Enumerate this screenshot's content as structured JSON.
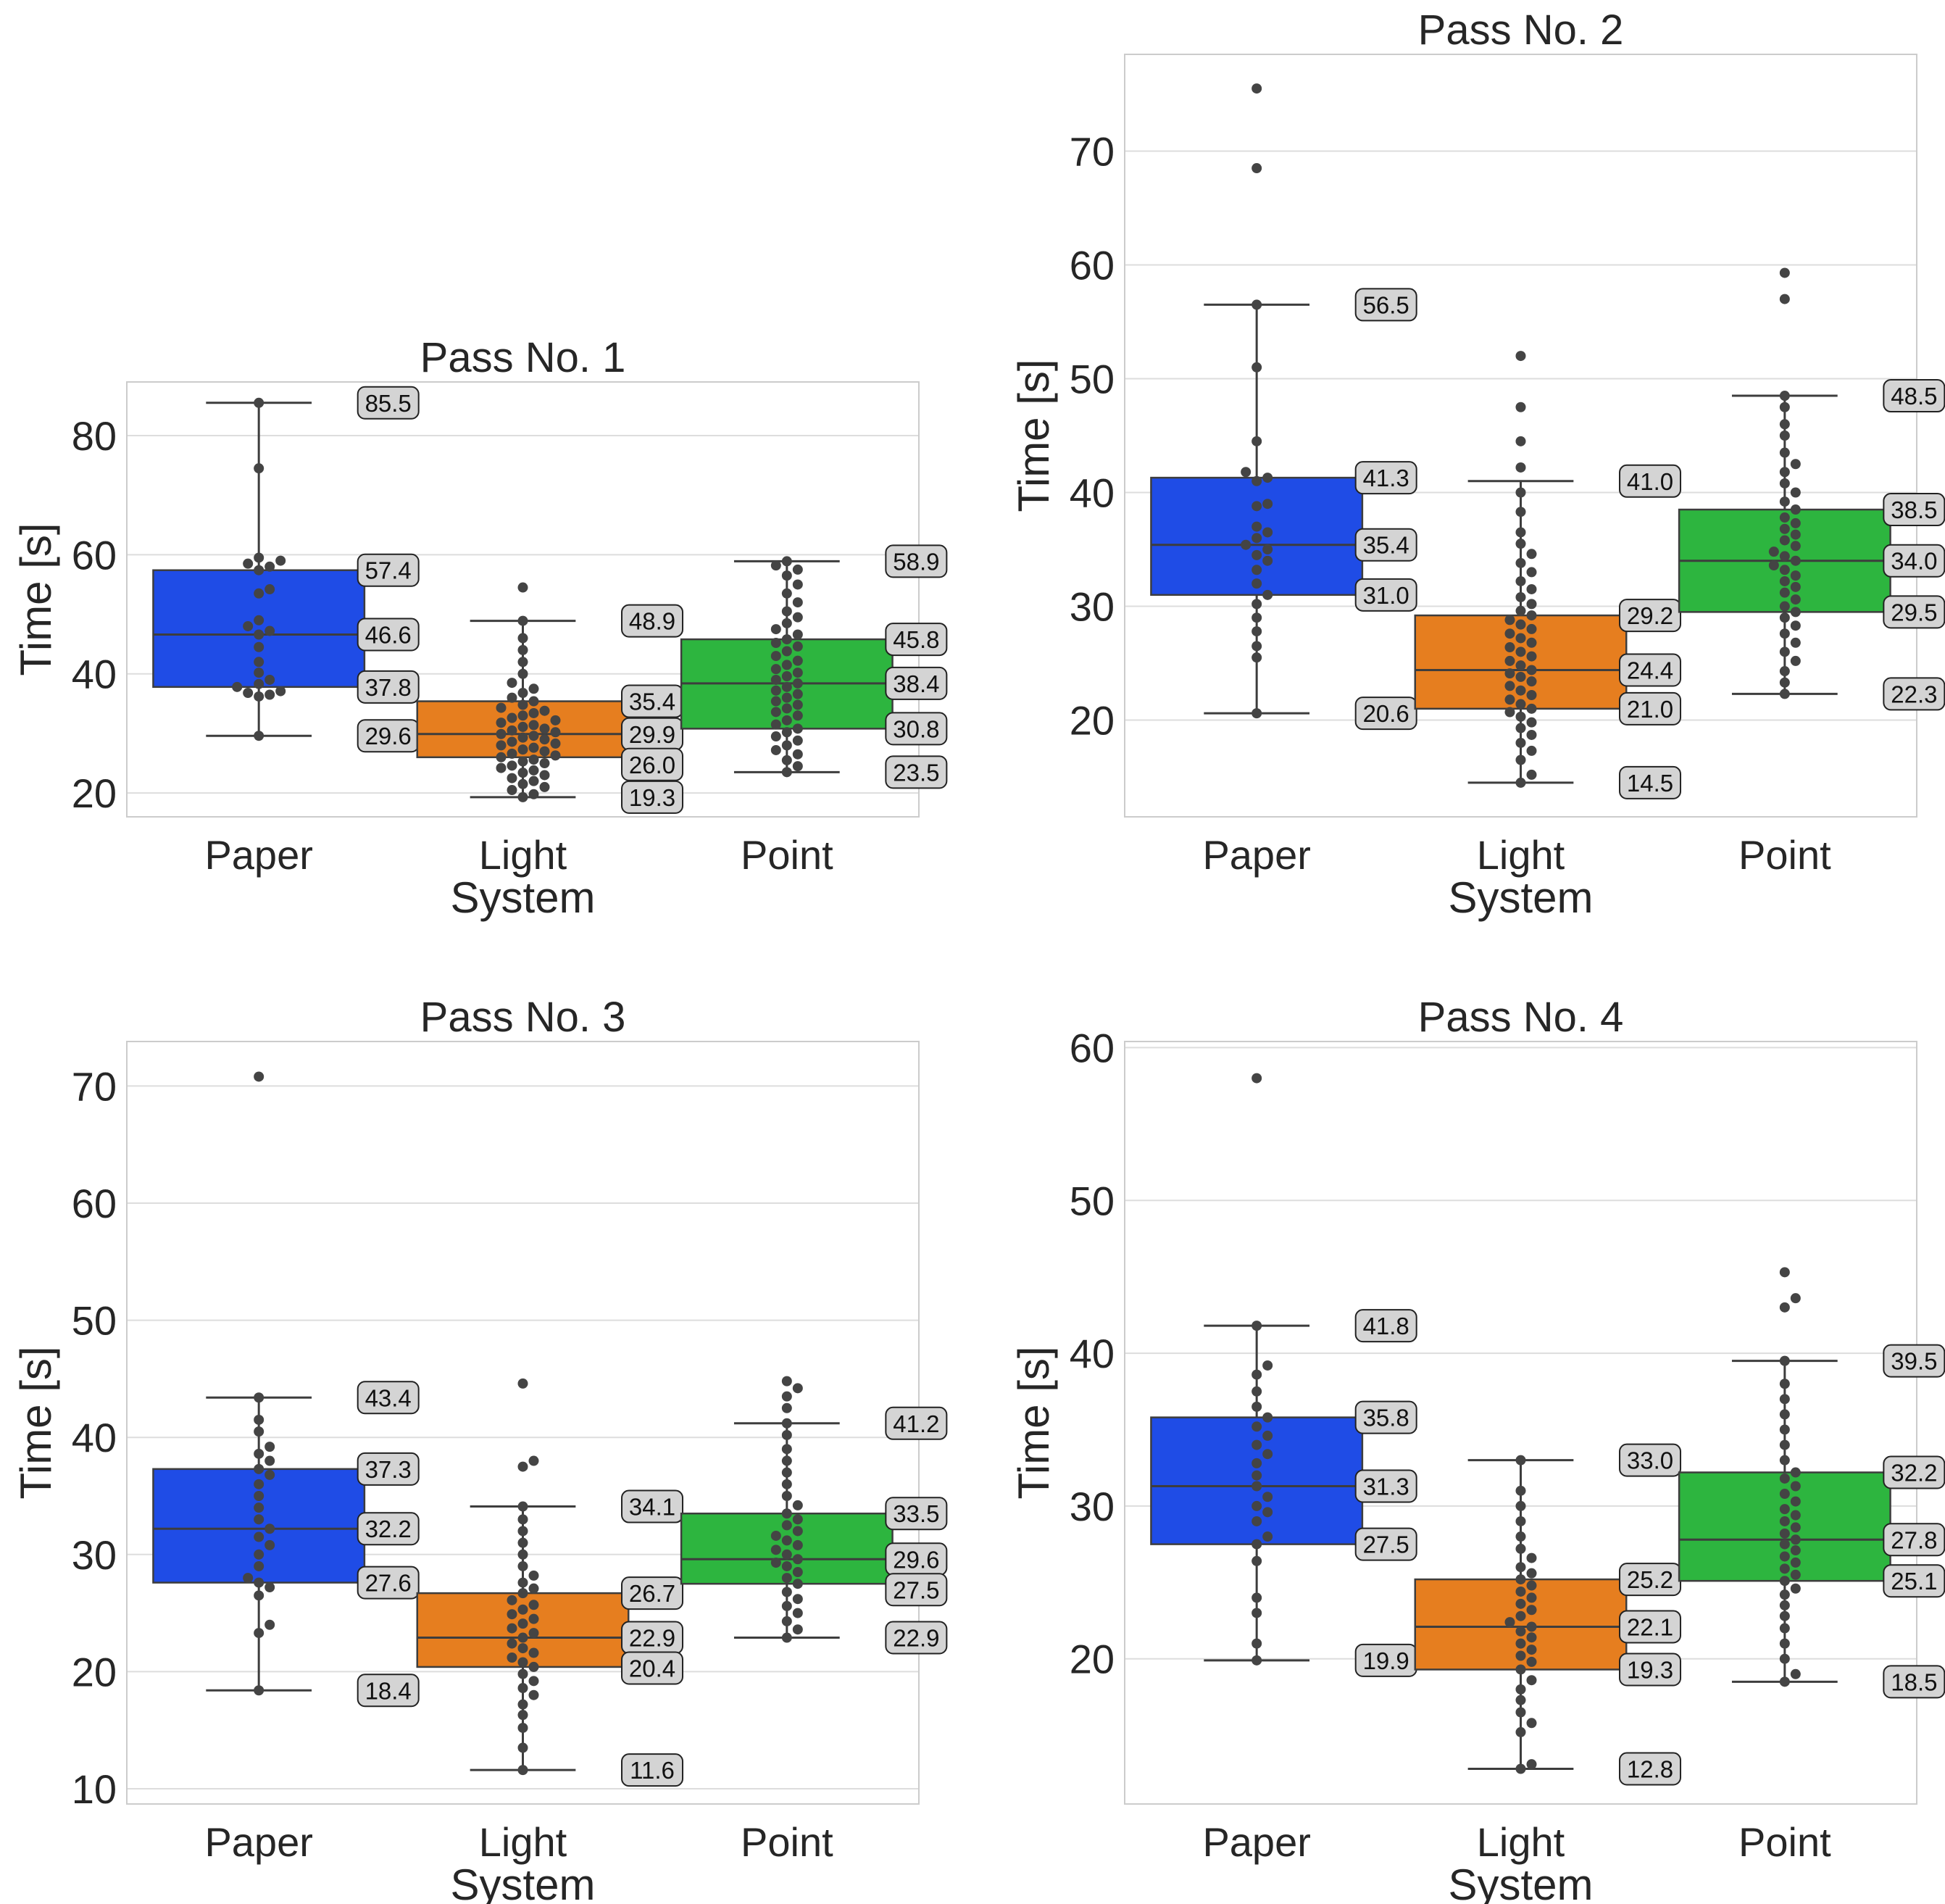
{
  "figure": {
    "x_label": "System",
    "y_label": "Time [s]",
    "colors": {
      "Paper": "#1f4ce6",
      "Light": "#e67e1f",
      "Point": "#2db53f",
      "dots": "#444444",
      "grid": "#dddddd",
      "frame": "#cccccc",
      "label_box": "#d4d4d4"
    }
  },
  "chart_data": [
    {
      "type": "box",
      "title": "Pass No. 1",
      "xlabel": "System",
      "ylabel": "Time [s]",
      "ylim": [
        16,
        89
      ],
      "yticks": [
        20,
        40,
        60,
        80
      ],
      "categories": [
        "Paper",
        "Light",
        "Point"
      ],
      "boxes": [
        {
          "category": "Paper",
          "whislo": 29.6,
          "q1": 37.8,
          "med": 46.6,
          "q3": 57.4,
          "whishi": 85.5,
          "points": [
            29.6,
            36.2,
            36.5,
            36.8,
            37.1,
            37.8,
            38.3,
            39.0,
            40.2,
            42.0,
            44.5,
            46.6,
            47.2,
            48.0,
            49.0,
            53.5,
            54.2,
            57.4,
            58.0,
            58.5,
            59.0,
            59.5,
            74.5,
            85.5
          ]
        },
        {
          "category": "Light",
          "whislo": 19.3,
          "q1": 26.0,
          "med": 29.9,
          "q3": 35.4,
          "whishi": 48.9,
          "points": [
            19.3,
            19.8,
            20.5,
            21.0,
            21.5,
            22.0,
            22.5,
            23.0,
            23.4,
            23.8,
            24.2,
            24.6,
            25.0,
            25.3,
            25.6,
            26.0,
            26.3,
            26.6,
            27.0,
            27.3,
            27.6,
            28.0,
            28.3,
            28.6,
            29.0,
            29.3,
            29.6,
            29.9,
            30.2,
            30.5,
            30.8,
            31.1,
            31.4,
            31.8,
            32.2,
            32.6,
            33.0,
            33.4,
            33.8,
            34.3,
            34.8,
            35.4,
            36.0,
            36.8,
            37.5,
            38.5,
            40.0,
            42.0,
            44.0,
            46.0,
            48.9,
            54.5
          ]
        },
        {
          "category": "Point",
          "whislo": 23.5,
          "q1": 30.8,
          "med": 38.4,
          "q3": 45.8,
          "whishi": 58.9,
          "points": [
            23.5,
            24.5,
            25.5,
            26.5,
            27.2,
            28.0,
            28.8,
            29.5,
            30.2,
            30.8,
            31.5,
            32.2,
            33.0,
            33.6,
            34.2,
            34.8,
            35.4,
            36.0,
            36.6,
            37.2,
            37.8,
            38.4,
            39.0,
            39.6,
            40.2,
            40.8,
            41.5,
            42.2,
            43.0,
            43.8,
            44.6,
            45.2,
            45.8,
            46.6,
            47.5,
            48.5,
            49.5,
            50.5,
            52.0,
            53.5,
            55.0,
            56.5,
            57.5,
            58.2,
            58.9
          ]
        }
      ]
    },
    {
      "type": "box",
      "title": "Pass No. 2",
      "xlabel": "System",
      "ylabel": "Time [s]",
      "ylim": [
        11.5,
        78.5
      ],
      "yticks": [
        20,
        30,
        40,
        50,
        60,
        70
      ],
      "categories": [
        "Paper",
        "Light",
        "Point"
      ],
      "boxes": [
        {
          "category": "Paper",
          "whislo": 20.6,
          "q1": 31.0,
          "med": 35.4,
          "q3": 41.3,
          "whishi": 56.5,
          "points": [
            20.6,
            25.5,
            26.5,
            27.8,
            29.0,
            30.2,
            31.0,
            32.0,
            33.2,
            34.0,
            34.5,
            35.0,
            35.4,
            36.0,
            36.5,
            37.0,
            38.8,
            39.0,
            41.0,
            41.3,
            41.8,
            44.5,
            51.0,
            56.5,
            68.5,
            75.5
          ]
        },
        {
          "category": "Light",
          "whislo": 14.5,
          "q1": 21.0,
          "med": 24.4,
          "q3": 29.2,
          "whishi": 41.0,
          "points": [
            14.5,
            15.2,
            16.5,
            17.3,
            18.0,
            18.7,
            19.3,
            19.8,
            20.3,
            20.7,
            21.0,
            21.4,
            21.8,
            22.2,
            22.6,
            23.0,
            23.4,
            23.8,
            24.1,
            24.4,
            24.8,
            25.2,
            25.6,
            26.0,
            26.4,
            26.8,
            27.2,
            27.6,
            28.0,
            28.4,
            28.8,
            29.2,
            29.6,
            30.2,
            30.8,
            31.5,
            32.2,
            33.0,
            33.8,
            34.6,
            35.5,
            36.5,
            38.3,
            40.0,
            42.2,
            44.5,
            47.5,
            52.0
          ]
        },
        {
          "category": "Point",
          "whislo": 22.3,
          "q1": 29.5,
          "med": 34.0,
          "q3": 38.5,
          "whishi": 48.5,
          "points": [
            22.3,
            23.3,
            24.3,
            25.2,
            26.0,
            26.8,
            27.6,
            28.3,
            29.0,
            29.5,
            30.0,
            30.6,
            31.2,
            31.7,
            32.2,
            32.7,
            33.2,
            33.6,
            34.0,
            34.4,
            34.8,
            35.3,
            35.8,
            36.3,
            36.8,
            37.3,
            37.8,
            38.5,
            39.2,
            40.0,
            40.8,
            41.8,
            42.5,
            43.5,
            45.0,
            46.0,
            47.5,
            48.5,
            57.0,
            59.3
          ]
        }
      ]
    },
    {
      "type": "box",
      "title": "Pass No. 3",
      "xlabel": "System",
      "ylabel": "Time [s]",
      "ylim": [
        8.7,
        73.8
      ],
      "yticks": [
        10,
        20,
        30,
        40,
        50,
        60,
        70
      ],
      "categories": [
        "Paper",
        "Light",
        "Point"
      ],
      "boxes": [
        {
          "category": "Paper",
          "whislo": 18.4,
          "q1": 27.6,
          "med": 32.2,
          "q3": 37.3,
          "whishi": 43.4,
          "points": [
            18.4,
            23.3,
            24.0,
            26.5,
            27.2,
            27.6,
            28.0,
            29.0,
            30.0,
            30.8,
            31.5,
            32.2,
            33.0,
            34.0,
            35.0,
            36.0,
            36.8,
            37.3,
            38.0,
            38.6,
            39.2,
            40.5,
            41.5,
            43.4,
            70.8
          ]
        },
        {
          "category": "Light",
          "whislo": 11.6,
          "q1": 20.4,
          "med": 22.9,
          "q3": 26.7,
          "whishi": 34.1,
          "points": [
            11.6,
            13.5,
            15.2,
            16.3,
            17.2,
            18.0,
            18.6,
            19.2,
            19.8,
            20.4,
            20.8,
            21.2,
            21.6,
            22.0,
            22.4,
            22.9,
            23.3,
            23.7,
            24.1,
            24.5,
            24.9,
            25.3,
            25.7,
            26.1,
            26.7,
            27.1,
            27.6,
            28.2,
            29.0,
            30.0,
            31.0,
            32.0,
            33.0,
            34.1,
            37.5,
            38.0,
            44.6
          ]
        },
        {
          "category": "Point",
          "whislo": 22.9,
          "q1": 27.5,
          "med": 29.6,
          "q3": 33.5,
          "whishi": 41.2,
          "points": [
            22.9,
            23.6,
            24.3,
            25.0,
            25.6,
            26.2,
            26.8,
            27.5,
            28.0,
            28.5,
            29.0,
            29.3,
            29.6,
            30.0,
            30.4,
            30.8,
            31.2,
            31.6,
            32.0,
            32.5,
            33.0,
            33.5,
            34.2,
            35.0,
            36.0,
            37.0,
            38.0,
            39.0,
            40.2,
            41.2,
            42.5,
            43.5,
            44.2,
            44.8
          ]
        }
      ]
    },
    {
      "type": "box",
      "title": "Pass No. 4",
      "xlabel": "System",
      "ylabel": "Time [s]",
      "ylim": [
        10.5,
        60.4
      ],
      "yticks": [
        20,
        30,
        40,
        50,
        60
      ],
      "categories": [
        "Paper",
        "Light",
        "Point"
      ],
      "boxes": [
        {
          "category": "Paper",
          "whislo": 19.9,
          "q1": 27.5,
          "med": 31.3,
          "q3": 35.8,
          "whishi": 41.8,
          "points": [
            19.9,
            21.0,
            23.0,
            24.0,
            26.4,
            27.5,
            28.0,
            29.0,
            29.6,
            30.0,
            30.6,
            31.3,
            32.0,
            32.8,
            33.4,
            34.0,
            34.6,
            35.2,
            35.8,
            36.5,
            37.5,
            38.6,
            39.2,
            41.8,
            58.0
          ]
        },
        {
          "category": "Light",
          "whislo": 12.8,
          "q1": 19.3,
          "med": 22.1,
          "q3": 25.2,
          "whishi": 33.0,
          "points": [
            12.8,
            13.1,
            15.2,
            15.8,
            16.5,
            17.3,
            18.0,
            18.6,
            19.3,
            19.8,
            20.2,
            20.6,
            21.0,
            21.4,
            21.8,
            22.1,
            22.4,
            22.8,
            23.2,
            23.6,
            24.0,
            24.4,
            24.8,
            25.2,
            25.6,
            26.0,
            26.6,
            27.2,
            28.0,
            29.0,
            30.0,
            31.0,
            33.0
          ]
        },
        {
          "category": "Point",
          "whislo": 18.5,
          "q1": 25.1,
          "med": 27.8,
          "q3": 32.2,
          "whishi": 39.5,
          "points": [
            18.5,
            19.0,
            20.0,
            21.0,
            22.0,
            22.8,
            23.5,
            24.2,
            24.6,
            25.1,
            25.5,
            25.9,
            26.3,
            26.7,
            27.1,
            27.5,
            27.8,
            28.2,
            28.6,
            29.0,
            29.4,
            29.8,
            30.3,
            30.8,
            31.3,
            31.8,
            32.2,
            33.0,
            34.0,
            35.0,
            36.0,
            37.0,
            38.0,
            39.5,
            43.0,
            43.6,
            45.3
          ]
        }
      ]
    }
  ]
}
